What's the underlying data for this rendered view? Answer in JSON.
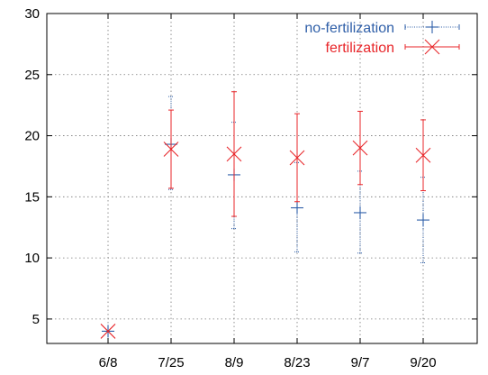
{
  "chart_data": {
    "type": "scatter",
    "title": "",
    "xlabel": "",
    "ylabel": "",
    "categories": [
      "6/8",
      "7/25",
      "8/9",
      "8/23",
      "9/7",
      "9/20"
    ],
    "ylim": [
      3,
      30
    ],
    "yticks": [
      5,
      10,
      15,
      20,
      25,
      30
    ],
    "grid": true,
    "legend_position": "top-right",
    "series": [
      {
        "name": "no-fertilization",
        "color": "#2f5fa8",
        "marker": "plus",
        "errorbar_style": "dotted",
        "values": [
          4.0,
          19.3,
          16.8,
          14.1,
          13.7,
          13.1
        ],
        "lower": [
          4.0,
          15.6,
          12.4,
          10.5,
          10.4,
          9.6
        ],
        "upper": [
          4.0,
          23.2,
          21.1,
          17.8,
          17.1,
          16.6
        ]
      },
      {
        "name": "fertilization",
        "color": "#e8262a",
        "marker": "x",
        "errorbar_style": "solid",
        "values": [
          4.0,
          18.9,
          18.5,
          18.2,
          19.0,
          18.4
        ],
        "lower": [
          4.0,
          15.7,
          13.4,
          14.6,
          16.0,
          15.5
        ],
        "upper": [
          4.0,
          22.1,
          23.6,
          21.8,
          22.0,
          21.3
        ]
      }
    ]
  }
}
